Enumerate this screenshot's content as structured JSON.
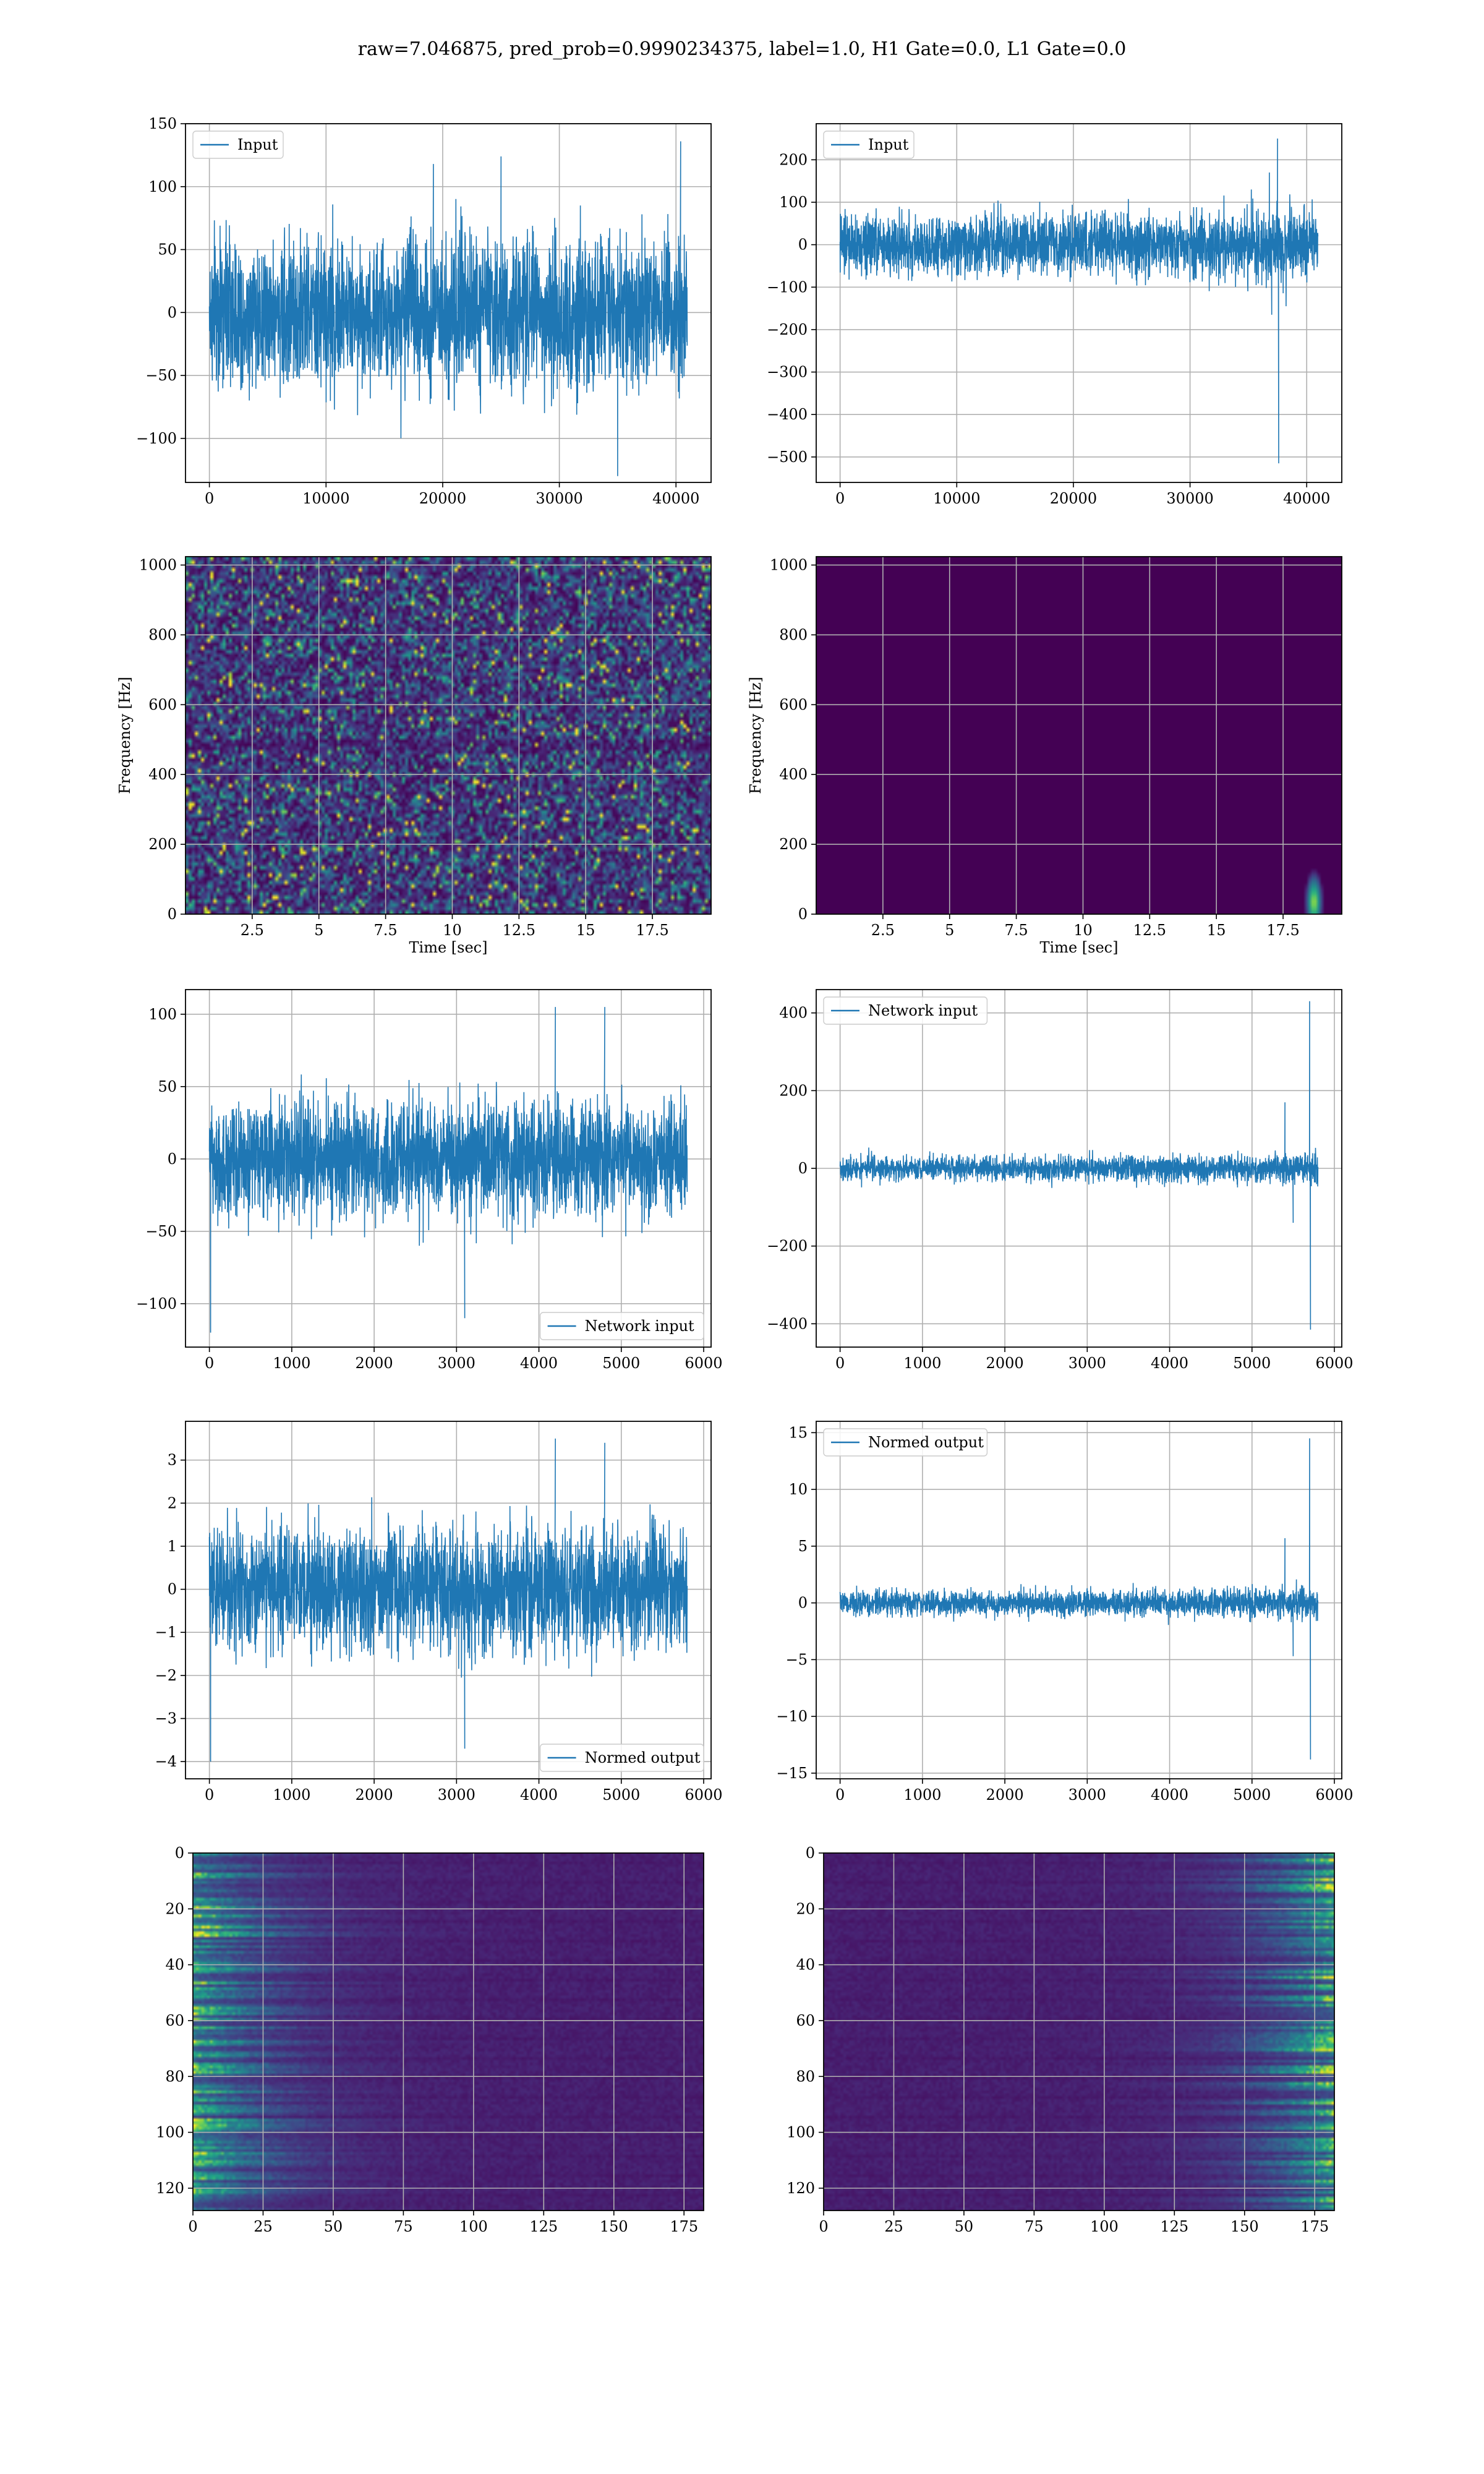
{
  "figure": {
    "suptitle": "raw=7.046875, pred_prob=0.9990234375, label=1.0, H1 Gate=0.0, L1 Gate=0.0"
  },
  "colors": {
    "line": "#1f77b4",
    "grid": "#b0b0b0",
    "viridis_low": "#440154",
    "viridis_mid": "#21918c",
    "viridis_high": "#fde725"
  },
  "chart_data": [
    {
      "id": "input-h1",
      "type": "line",
      "row": 0,
      "col": 0,
      "xlim": [
        -2048,
        43008
      ],
      "ylim": [
        -135,
        150
      ],
      "xticks": [
        0,
        10000,
        20000,
        30000,
        40000
      ],
      "yticks": [
        -100,
        -50,
        0,
        50,
        100,
        150
      ],
      "legend": [
        "Input"
      ],
      "legend_loc": "upper left",
      "series": [
        {
          "name": "Input",
          "x_range": [
            0,
            40960
          ],
          "band": [
            -75,
            75
          ],
          "extremes": [
            [
              35000,
              -130
            ],
            [
              40400,
              136
            ],
            [
              25000,
              124
            ],
            [
              19200,
              118
            ]
          ]
        }
      ]
    },
    {
      "id": "input-l1",
      "type": "line",
      "row": 0,
      "col": 1,
      "xlim": [
        -2048,
        43008
      ],
      "ylim": [
        -560,
        285
      ],
      "xticks": [
        0,
        10000,
        20000,
        30000,
        40000
      ],
      "yticks": [
        -500,
        -400,
        -300,
        -200,
        -100,
        0,
        100,
        200
      ],
      "legend": [
        "Input"
      ],
      "legend_loc": "upper left",
      "series": [
        {
          "name": "Input",
          "x_range": [
            0,
            40960
          ],
          "band": [
            -90,
            90
          ],
          "extremes": [
            [
              37500,
              250
            ],
            [
              37600,
              -515
            ],
            [
              37000,
              -165
            ],
            [
              36800,
              170
            ]
          ]
        }
      ]
    },
    {
      "id": "spectrogram-h1",
      "type": "heatmap",
      "row": 1,
      "col": 0,
      "xlim": [
        0,
        19.7
      ],
      "ylim": [
        0,
        1024
      ],
      "xticks": [
        2.5,
        5.0,
        7.5,
        10.0,
        12.5,
        15.0,
        17.5
      ],
      "yticks": [
        0,
        200,
        400,
        600,
        800,
        1000
      ],
      "xlabel": "Time [sec]",
      "ylabel": "Frequency [Hz]",
      "colormap": "viridis",
      "description_values": "noise"
    },
    {
      "id": "spectrogram-l1",
      "type": "heatmap",
      "row": 1,
      "col": 1,
      "xlim": [
        0,
        19.7
      ],
      "ylim": [
        0,
        1024
      ],
      "xticks": [
        2.5,
        5.0,
        7.5,
        10.0,
        12.5,
        15.0,
        17.5
      ],
      "yticks": [
        0,
        200,
        400,
        600,
        800,
        1000
      ],
      "xlabel": "Time [sec]",
      "ylabel": "Frequency [Hz]",
      "colormap": "viridis",
      "hotspot": {
        "t": 18.6,
        "f": 40
      }
    },
    {
      "id": "network-input-h1",
      "type": "line",
      "row": 2,
      "col": 0,
      "xlim": [
        -290,
        6090
      ],
      "ylim": [
        -130,
        117
      ],
      "xticks": [
        0,
        1000,
        2000,
        3000,
        4000,
        5000,
        6000
      ],
      "yticks": [
        -100,
        -50,
        0,
        50,
        100
      ],
      "legend": [
        "Network input"
      ],
      "legend_loc": "lower right",
      "series": [
        {
          "name": "Network input",
          "x_range": [
            0,
            5800
          ],
          "band": [
            -50,
            50
          ],
          "extremes": [
            [
              15,
              -120
            ],
            [
              3100,
              -110
            ],
            [
              4200,
              105
            ],
            [
              4800,
              105
            ]
          ]
        }
      ]
    },
    {
      "id": "network-input-l1",
      "type": "line",
      "row": 2,
      "col": 1,
      "xlim": [
        -290,
        6090
      ],
      "ylim": [
        -460,
        460
      ],
      "xticks": [
        0,
        1000,
        2000,
        3000,
        4000,
        5000,
        6000
      ],
      "yticks": [
        -400,
        -200,
        0,
        200,
        400
      ],
      "legend": [
        "Network input"
      ],
      "legend_loc": "upper left",
      "series": [
        {
          "name": "Network input",
          "x_range": [
            0,
            5800
          ],
          "band": [
            -40,
            40
          ],
          "extremes": [
            [
              5700,
              430
            ],
            [
              5710,
              -415
            ],
            [
              5400,
              170
            ],
            [
              5500,
              -140
            ]
          ]
        }
      ]
    },
    {
      "id": "normed-output-h1",
      "type": "line",
      "row": 3,
      "col": 0,
      "xlim": [
        -290,
        6090
      ],
      "ylim": [
        -4.4,
        3.9
      ],
      "xticks": [
        0,
        1000,
        2000,
        3000,
        4000,
        5000,
        6000
      ],
      "yticks": [
        -4,
        -3,
        -2,
        -1,
        0,
        1,
        2,
        3
      ],
      "legend": [
        "Normed output"
      ],
      "legend_loc": "lower right",
      "series": [
        {
          "name": "Normed output",
          "x_range": [
            0,
            5800
          ],
          "band": [
            -1.8,
            1.8
          ],
          "extremes": [
            [
              15,
              -4.0
            ],
            [
              3100,
              -3.7
            ],
            [
              4200,
              3.5
            ],
            [
              4800,
              3.4
            ]
          ]
        }
      ]
    },
    {
      "id": "normed-output-l1",
      "type": "line",
      "row": 3,
      "col": 1,
      "xlim": [
        -290,
        6090
      ],
      "ylim": [
        -15.5,
        16.0
      ],
      "xticks": [
        0,
        1000,
        2000,
        3000,
        4000,
        5000,
        6000
      ],
      "yticks": [
        -15,
        -10,
        -5,
        0,
        5,
        10,
        15
      ],
      "legend": [
        "Normed output"
      ],
      "legend_loc": "upper left",
      "series": [
        {
          "name": "Normed output",
          "x_range": [
            0,
            5800
          ],
          "band": [
            -1.4,
            1.4
          ],
          "extremes": [
            [
              5700,
              14.5
            ],
            [
              5710,
              -13.8
            ],
            [
              5400,
              5.7
            ],
            [
              5500,
              -4.7
            ]
          ]
        }
      ]
    },
    {
      "id": "feature-map-h1",
      "type": "heatmap",
      "row": 4,
      "col": 0,
      "xlim": [
        0,
        182
      ],
      "ylim": [
        128,
        0
      ],
      "xticks": [
        0,
        25,
        50,
        75,
        100,
        125,
        150,
        175
      ],
      "yticks": [
        0,
        20,
        40,
        60,
        80,
        100,
        120
      ],
      "colormap": "viridis",
      "energy_side": "left"
    },
    {
      "id": "feature-map-l1",
      "type": "heatmap",
      "row": 4,
      "col": 1,
      "xlim": [
        0,
        182
      ],
      "ylim": [
        128,
        0
      ],
      "xticks": [
        0,
        25,
        50,
        75,
        100,
        125,
        150,
        175
      ],
      "yticks": [
        0,
        20,
        40,
        60,
        80,
        100,
        120
      ],
      "colormap": "viridis",
      "energy_side": "right"
    }
  ]
}
